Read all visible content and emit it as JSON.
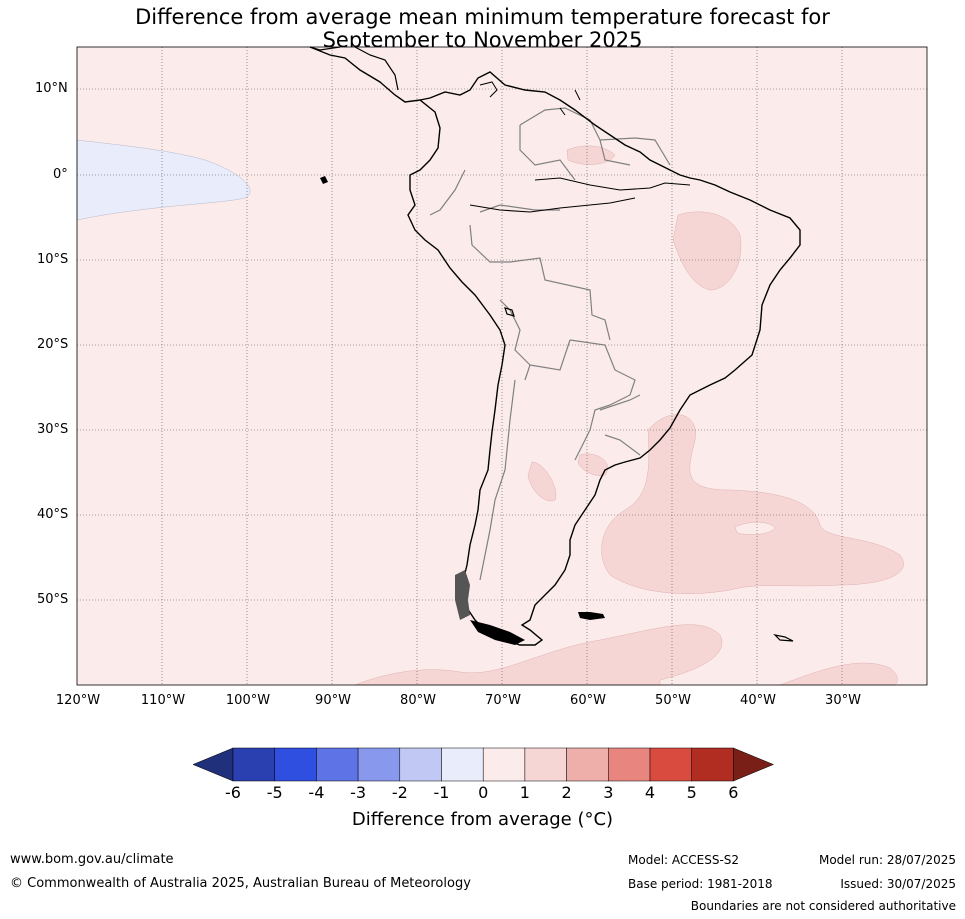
{
  "title_line1": "Difference from average mean minimum temperature forecast for",
  "title_line2": "September to November 2025",
  "lat_labels": [
    "10°N",
    "0°",
    "10°S",
    "20°S",
    "30°S",
    "40°S",
    "50°S"
  ],
  "lon_labels": [
    "120°W",
    "110°W",
    "100°W",
    "90°W",
    "80°W",
    "70°W",
    "60°W",
    "50°W",
    "40°W",
    "30°W"
  ],
  "colorbar": {
    "ticks": [
      "-6",
      "-5",
      "-4",
      "-3",
      "-2",
      "-1",
      "0",
      "1",
      "2",
      "3",
      "4",
      "5",
      "6"
    ],
    "colors": [
      "#20307a",
      "#2a3fb0",
      "#2f4fe0",
      "#5e73e6",
      "#8898ec",
      "#c2c8f4",
      "#e8ecfb",
      "#fbeceb",
      "#f6d6d5",
      "#eeaeaa",
      "#e9857f",
      "#d94b3f",
      "#b12d22",
      "#7a1e18"
    ],
    "label": "Difference from average (°C)"
  },
  "map_colors": {
    "background": "#fbeceb",
    "warm_patch": "#f6d6d5",
    "cool_patch": "#e8ecfb",
    "coast": "#000000",
    "border": "#808080"
  },
  "footer": {
    "website": "www.bom.gov.au/climate",
    "copyright": "© Commonwealth of Australia 2025, Australian Bureau of Meteorology",
    "model": "Model: ACCESS-S2",
    "base_period": "Base period: 1981-2018",
    "model_run": "Model run: 28/07/2025",
    "issued": "Issued: 30/07/2025",
    "disclaimer": "Boundaries are not considered authoritative"
  }
}
